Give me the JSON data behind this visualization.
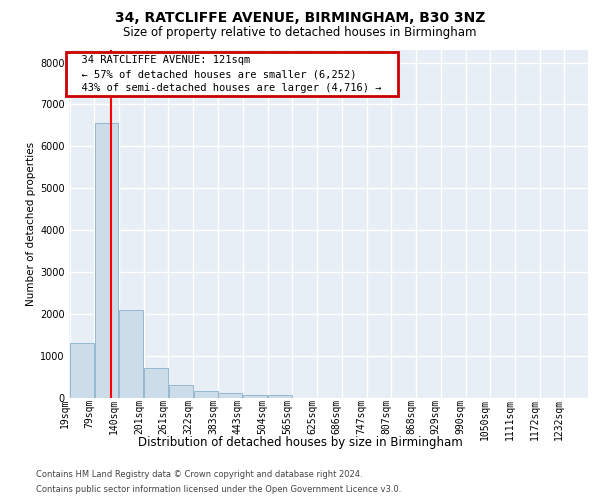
{
  "title1": "34, RATCLIFFE AVENUE, BIRMINGHAM, B30 3NZ",
  "title2": "Size of property relative to detached houses in Birmingham",
  "xlabel": "Distribution of detached houses by size in Birmingham",
  "ylabel": "Number of detached properties",
  "footer1": "Contains HM Land Registry data © Crown copyright and database right 2024.",
  "footer2": "Contains public sector information licensed under the Open Government Licence v3.0.",
  "annotation_title": "34 RATCLIFFE AVENUE: 121sqm",
  "annotation_line1": "← 57% of detached houses are smaller (6,252)",
  "annotation_line2": "43% of semi-detached houses are larger (4,716) →",
  "property_sqm": 121,
  "bins_left": [
    19,
    79,
    140,
    201,
    261,
    322,
    383,
    443,
    504,
    565,
    625,
    686,
    747,
    807,
    868,
    929,
    990,
    1050,
    1111,
    1172,
    1232
  ],
  "values": [
    1300,
    6550,
    2080,
    700,
    290,
    150,
    100,
    60,
    60,
    0,
    0,
    0,
    0,
    0,
    0,
    0,
    0,
    0,
    0,
    0
  ],
  "bar_color": "#ccdce8",
  "bar_edge_color": "#8ab0cc",
  "annotation_box_edge": "#cc0000",
  "bg_color": "#e8eef5",
  "grid_color": "#ffffff",
  "ylim": [
    0,
    8300
  ],
  "yticks": [
    0,
    1000,
    2000,
    3000,
    4000,
    5000,
    6000,
    7000,
    8000
  ],
  "title1_fontsize": 10,
  "title2_fontsize": 8.5,
  "xlabel_fontsize": 8.5,
  "ylabel_fontsize": 7.5,
  "tick_fontsize": 7.0,
  "ann_fontsize": 7.5,
  "footer_fontsize": 6.0
}
